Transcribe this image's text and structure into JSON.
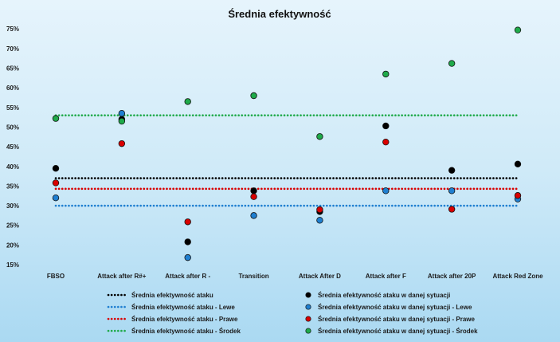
{
  "chart_data": {
    "type": "scatter",
    "title": "Średnia efektywność",
    "categories": [
      "FBSO",
      "Attack after R#+",
      "Attack after R -",
      "Transition",
      "Attack After D",
      "Attack after F",
      "Attack after 20P",
      "Attack Red Zone"
    ],
    "y_ticks": [
      "15%",
      "20%",
      "25%",
      "30%",
      "35%",
      "40%",
      "45%",
      "50%",
      "55%",
      "60%",
      "65%",
      "70%",
      "75%"
    ],
    "ylim": [
      15,
      76
    ],
    "grid": false,
    "legend_position": "bottom",
    "lines": [
      {
        "name": "Średnia efektywność ataku",
        "value": 37,
        "color": "#000000"
      },
      {
        "name": "Średnia efektywność ataku - Lewe",
        "value": 30,
        "color": "#1f7fd0"
      },
      {
        "name": "Średnia efektywność ataku - Prawe",
        "value": 34.3,
        "color": "#d90000"
      },
      {
        "name": "Średnia efektywność ataku - Środek",
        "value": 53,
        "color": "#1faa4a"
      }
    ],
    "series": [
      {
        "name": "Średnia efektywność ataku w danej sytuacji",
        "color": "#000000",
        "values": [
          39.5,
          52,
          20.8,
          33.8,
          28.5,
          50.3,
          39,
          40.6
        ]
      },
      {
        "name": "Średnia efektywność ataku w danej sytuacji - Lewe",
        "color": "#1f7fd0",
        "values": [
          32,
          53.5,
          16.8,
          27.5,
          26.3,
          33.8,
          33.8,
          31.7
        ]
      },
      {
        "name": "Średnia efektywność ataku w danej sytuacji - Prawe",
        "color": "#d90000",
        "values": [
          35.8,
          45.8,
          25.9,
          32.3,
          29,
          46.2,
          29.1,
          32.6
        ]
      },
      {
        "name": "Średnia efektywność ataku w danej sytuacji - Środek",
        "color": "#1faa4a",
        "values": [
          52.2,
          51.5,
          56.5,
          58,
          47.6,
          63.5,
          66.2,
          74.7
        ]
      }
    ]
  }
}
